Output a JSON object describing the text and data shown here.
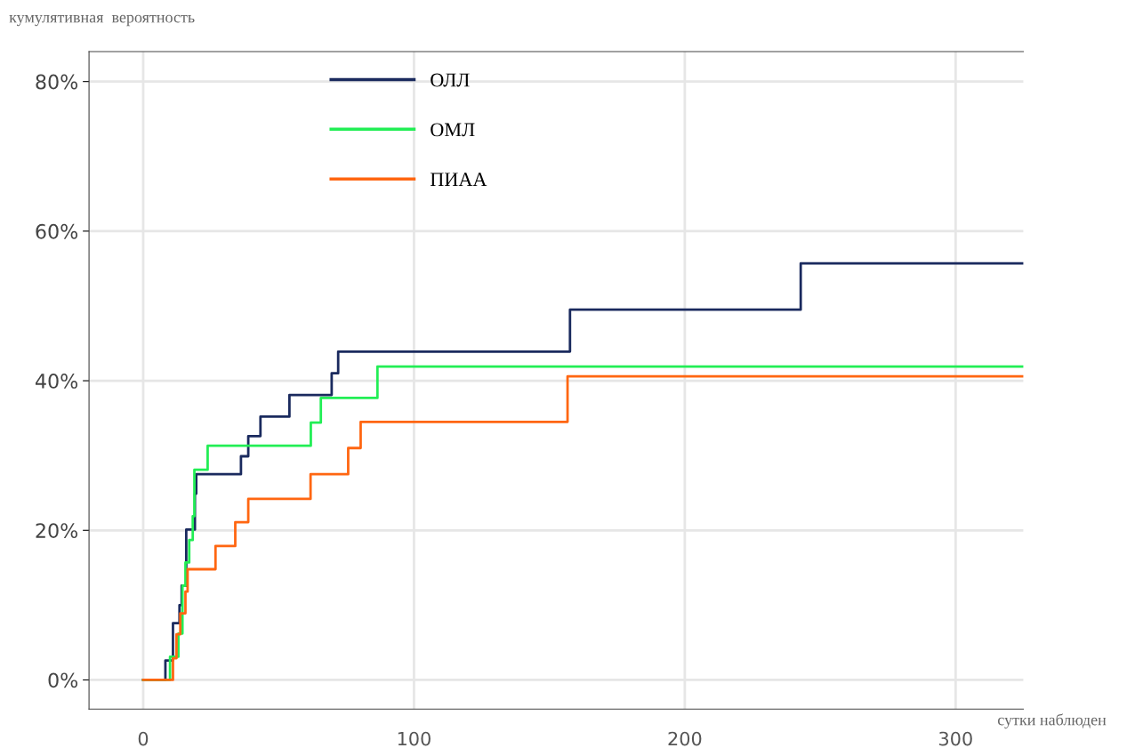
{
  "chart_data": {
    "type": "step",
    "title": "кумулятивная  вероятность",
    "xlabel": "сутки наблюден",
    "xlim": [
      -20,
      325
    ],
    "xticks": [
      0,
      100,
      200,
      300
    ],
    "ylim": [
      -3.9,
      84
    ],
    "yticks": [
      {
        "value": 0,
        "label": "0%"
      },
      {
        "value": 20,
        "label": "20%"
      },
      {
        "value": 40,
        "label": "40%"
      },
      {
        "value": 60,
        "label": "60%"
      },
      {
        "value": 80,
        "label": "80%"
      }
    ],
    "grid": true,
    "legend": "top",
    "line_style": "solid",
    "marker": "none",
    "series": [
      {
        "name": "ОЛЛ",
        "color": "#1a2a5e",
        "x": [
          0,
          8.2,
          11,
          13.4,
          14.2,
          15.9,
          19.1,
          19.6,
          36.1,
          38.8,
          43.3,
          54,
          69.6,
          72,
          157.6,
          242.8,
          325
        ],
        "values": [
          0,
          2.6,
          7.6,
          10,
          12.6,
          20.1,
          24.9,
          27.5,
          29.9,
          32.6,
          35.2,
          38.1,
          41,
          43.9,
          49.5,
          55.7,
          55.7
        ]
      },
      {
        "name": "ОМЛ",
        "color": "#22ee55",
        "x": [
          0,
          9.9,
          13,
          14.5,
          15.6,
          17,
          18.3,
          18.9,
          23.8,
          61.9,
          65.6,
          86.5,
          325
        ],
        "values": [
          0,
          3.1,
          6.2,
          12.6,
          15.7,
          18.7,
          21.9,
          28.1,
          31.3,
          34.4,
          37.7,
          41.9,
          41.9
        ]
      },
      {
        "name": "ПИАА",
        "color": "#ff6611",
        "x": [
          0,
          11,
          12.3,
          13.7,
          15.6,
          16.4,
          26.7,
          34,
          38.8,
          61.8,
          75.7,
          80.3,
          156.7,
          325
        ],
        "values": [
          0,
          2.9,
          6.1,
          8.9,
          11.8,
          14.8,
          17.9,
          21.1,
          24.2,
          27.5,
          31,
          34.5,
          40.6,
          40.6
        ]
      }
    ]
  }
}
